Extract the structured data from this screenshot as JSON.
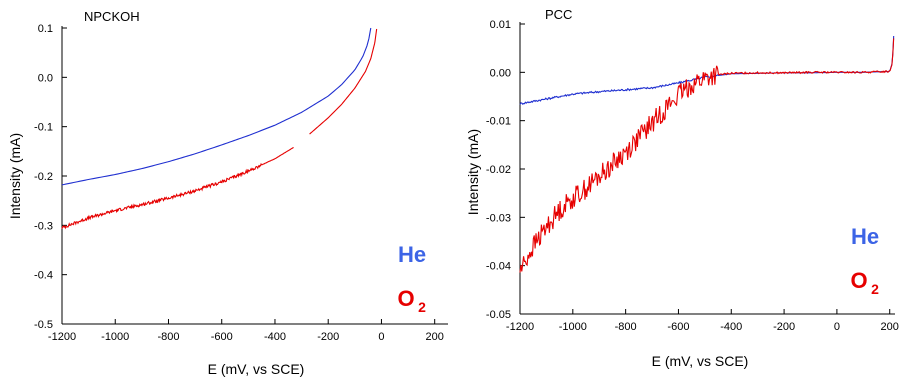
{
  "chart_data": [
    {
      "type": "line",
      "title": "NPCKOH",
      "xlabel": "E (mV, vs SCE)",
      "ylabel": "Intensity  (mA)",
      "xlim": [
        -1200,
        250
      ],
      "ylim": [
        -0.5,
        0.1
      ],
      "xticks": [
        -1200,
        -1000,
        -800,
        -600,
        -400,
        -200,
        0,
        200
      ],
      "xtick_labels": [
        "-1200",
        "-1000",
        "-800",
        "-600",
        "-400",
        "-200",
        "0",
        "200"
      ],
      "yticks": [
        -0.5,
        -0.4,
        -0.3,
        -0.2,
        -0.1,
        0.0,
        0.1
      ],
      "ytick_labels": [
        "-0.5",
        "-0.4",
        "-0.3",
        "-0.2",
        "-0.1",
        "0.0",
        "0.1"
      ],
      "legend": {
        "position": "bottom-right",
        "entries": [
          {
            "text": "He",
            "color": "#3c64e6"
          },
          {
            "text": "O",
            "sub": "2",
            "color": "#e60000"
          }
        ]
      },
      "series": [
        {
          "color": "#1f2fd0",
          "noise": 0,
          "x": [
            -1200,
            -1100,
            -1000,
            -900,
            -800,
            -700,
            -600,
            -500,
            -400,
            -300,
            -200,
            -150,
            -100,
            -70,
            -50,
            -40
          ],
          "y": [
            -0.218,
            -0.207,
            -0.197,
            -0.185,
            -0.171,
            -0.155,
            -0.137,
            -0.118,
            -0.097,
            -0.071,
            -0.038,
            -0.015,
            0.015,
            0.042,
            0.07,
            0.1
          ]
        },
        {
          "color": "#e60000",
          "noise": 0.003,
          "x": [
            -1200,
            -1100,
            -1000,
            -900,
            -800,
            -700,
            -600,
            -500,
            -400,
            -330
          ],
          "y": [
            -0.305,
            -0.285,
            -0.27,
            -0.258,
            -0.245,
            -0.23,
            -0.212,
            -0.19,
            -0.165,
            -0.142
          ]
        },
        {
          "color": "#e60000",
          "noise": 0,
          "x": [
            -270,
            -200,
            -150,
            -100,
            -60,
            -40,
            -25,
            -18
          ],
          "y": [
            -0.115,
            -0.082,
            -0.055,
            -0.022,
            0.012,
            0.038,
            0.07,
            0.098
          ]
        }
      ]
    },
    {
      "type": "line",
      "title": "PCC",
      "xlabel": "E (mV, vs SCE)",
      "ylabel": "Intensity  (mA)",
      "xlim": [
        -1200,
        220
      ],
      "ylim": [
        -0.05,
        0.01
      ],
      "xticks": [
        -1200,
        -1000,
        -800,
        -600,
        -400,
        -200,
        0,
        200
      ],
      "xtick_labels": [
        "-1200",
        "-1000",
        "-800",
        "-600",
        "-400",
        "-200",
        "0",
        "200"
      ],
      "yticks": [
        -0.05,
        -0.04,
        -0.03,
        -0.02,
        -0.01,
        0.0,
        0.01
      ],
      "ytick_labels": [
        "-0.05",
        "-0.04",
        "-0.03",
        "-0.02",
        "-0.01",
        "0.00",
        "0.01"
      ],
      "legend": {
        "position": "bottom-right",
        "entries": [
          {
            "text": "He",
            "color": "#3c64e6"
          },
          {
            "text": "O",
            "sub": "2",
            "color": "#e60000"
          }
        ]
      },
      "series": [
        {
          "color": "#1f2fd0",
          "noise": 0.0002,
          "x": [
            -1200,
            -1100,
            -1000,
            -900,
            -800,
            -700,
            -600,
            -500,
            -400,
            -300,
            -200,
            -100,
            0,
            100,
            200,
            210,
            215
          ],
          "y": [
            -0.0065,
            -0.0055,
            -0.0045,
            -0.004,
            -0.0036,
            -0.0032,
            -0.0022,
            -0.001,
            -0.0003,
            -0.0002,
            -0.0001,
            -0.0001,
            0.0,
            0.0,
            0.0002,
            0.002,
            0.0075
          ]
        },
        {
          "color": "#e60000",
          "noise": 0.0022,
          "x": [
            -1200,
            -1150,
            -1100,
            -1050,
            -1000,
            -950,
            -900,
            -850,
            -800,
            -750,
            -700,
            -650,
            -600,
            -550,
            -500,
            -450,
            -400,
            -300,
            -200,
            -100,
            0,
            100,
            200,
            210,
            215
          ],
          "y": [
            -0.041,
            -0.036,
            -0.032,
            -0.0285,
            -0.026,
            -0.024,
            -0.0215,
            -0.019,
            -0.0165,
            -0.0135,
            -0.0105,
            -0.0075,
            -0.0048,
            -0.0025,
            -0.0012,
            -0.0005,
            -0.0002,
            -0.0001,
            -0.0001,
            0.0,
            0.0,
            0.0,
            0.0002,
            0.002,
            0.007
          ]
        }
      ]
    }
  ]
}
